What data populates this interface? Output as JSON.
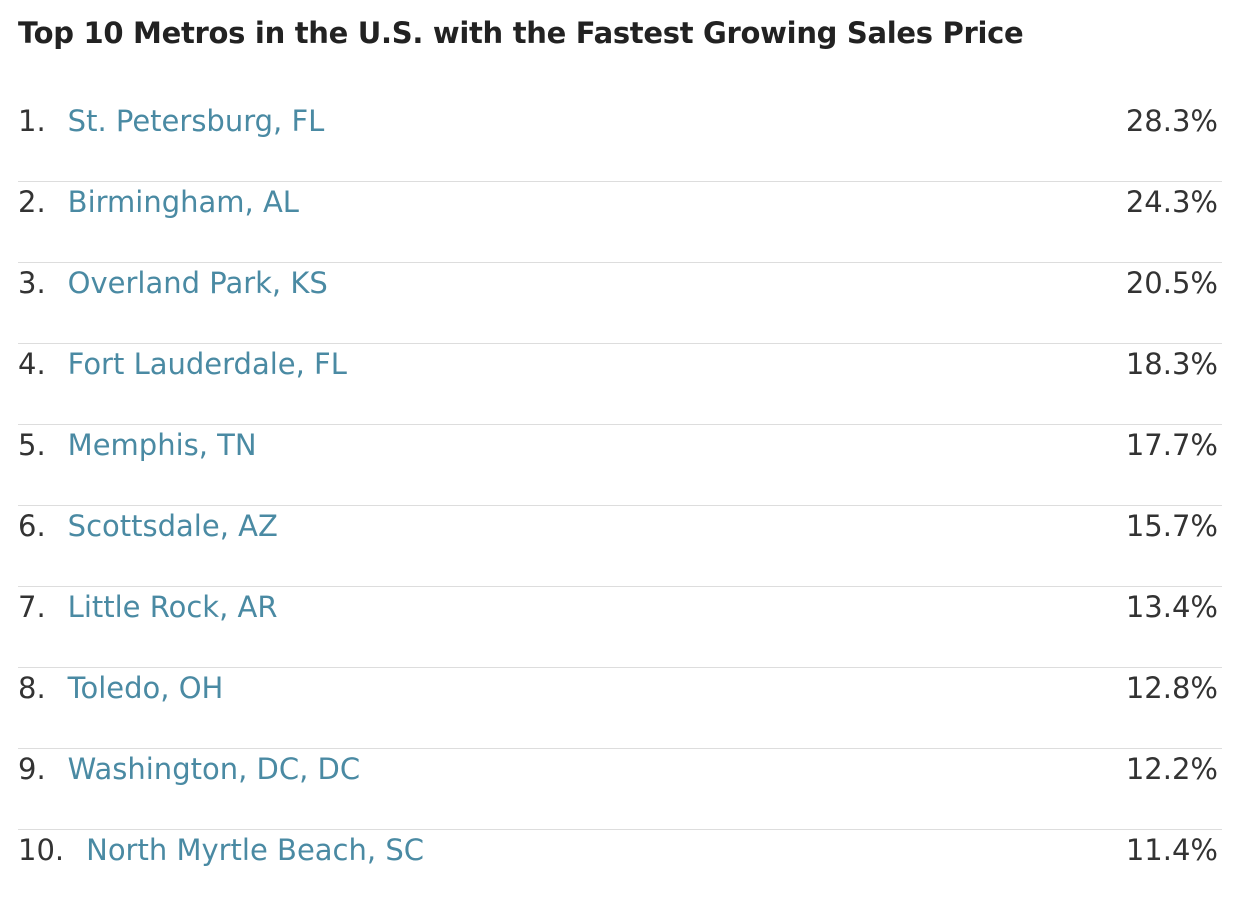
{
  "title": "Top 10 Metros in the U.S. with the Fastest Growing Sales Price",
  "colors": {
    "link": "#4a8aa3",
    "text": "#333333",
    "divider": "#dddddd"
  },
  "rows": [
    {
      "rank": "1.",
      "metro": "St. Petersburg, FL",
      "value": "28.3%"
    },
    {
      "rank": "2.",
      "metro": "Birmingham, AL",
      "value": "24.3%"
    },
    {
      "rank": "3.",
      "metro": "Overland Park, KS",
      "value": "20.5%"
    },
    {
      "rank": "4.",
      "metro": "Fort Lauderdale, FL",
      "value": "18.3%"
    },
    {
      "rank": "5.",
      "metro": "Memphis, TN",
      "value": "17.7%"
    },
    {
      "rank": "6.",
      "metro": "Scottsdale, AZ",
      "value": "15.7%"
    },
    {
      "rank": "7.",
      "metro": "Little Rock, AR",
      "value": "13.4%"
    },
    {
      "rank": "8.",
      "metro": "Toledo, OH",
      "value": "12.8%"
    },
    {
      "rank": "9.",
      "metro": "Washington, DC, DC",
      "value": "12.2%"
    },
    {
      "rank": "10.",
      "metro": "North Myrtle Beach, SC",
      "value": "11.4%"
    }
  ]
}
